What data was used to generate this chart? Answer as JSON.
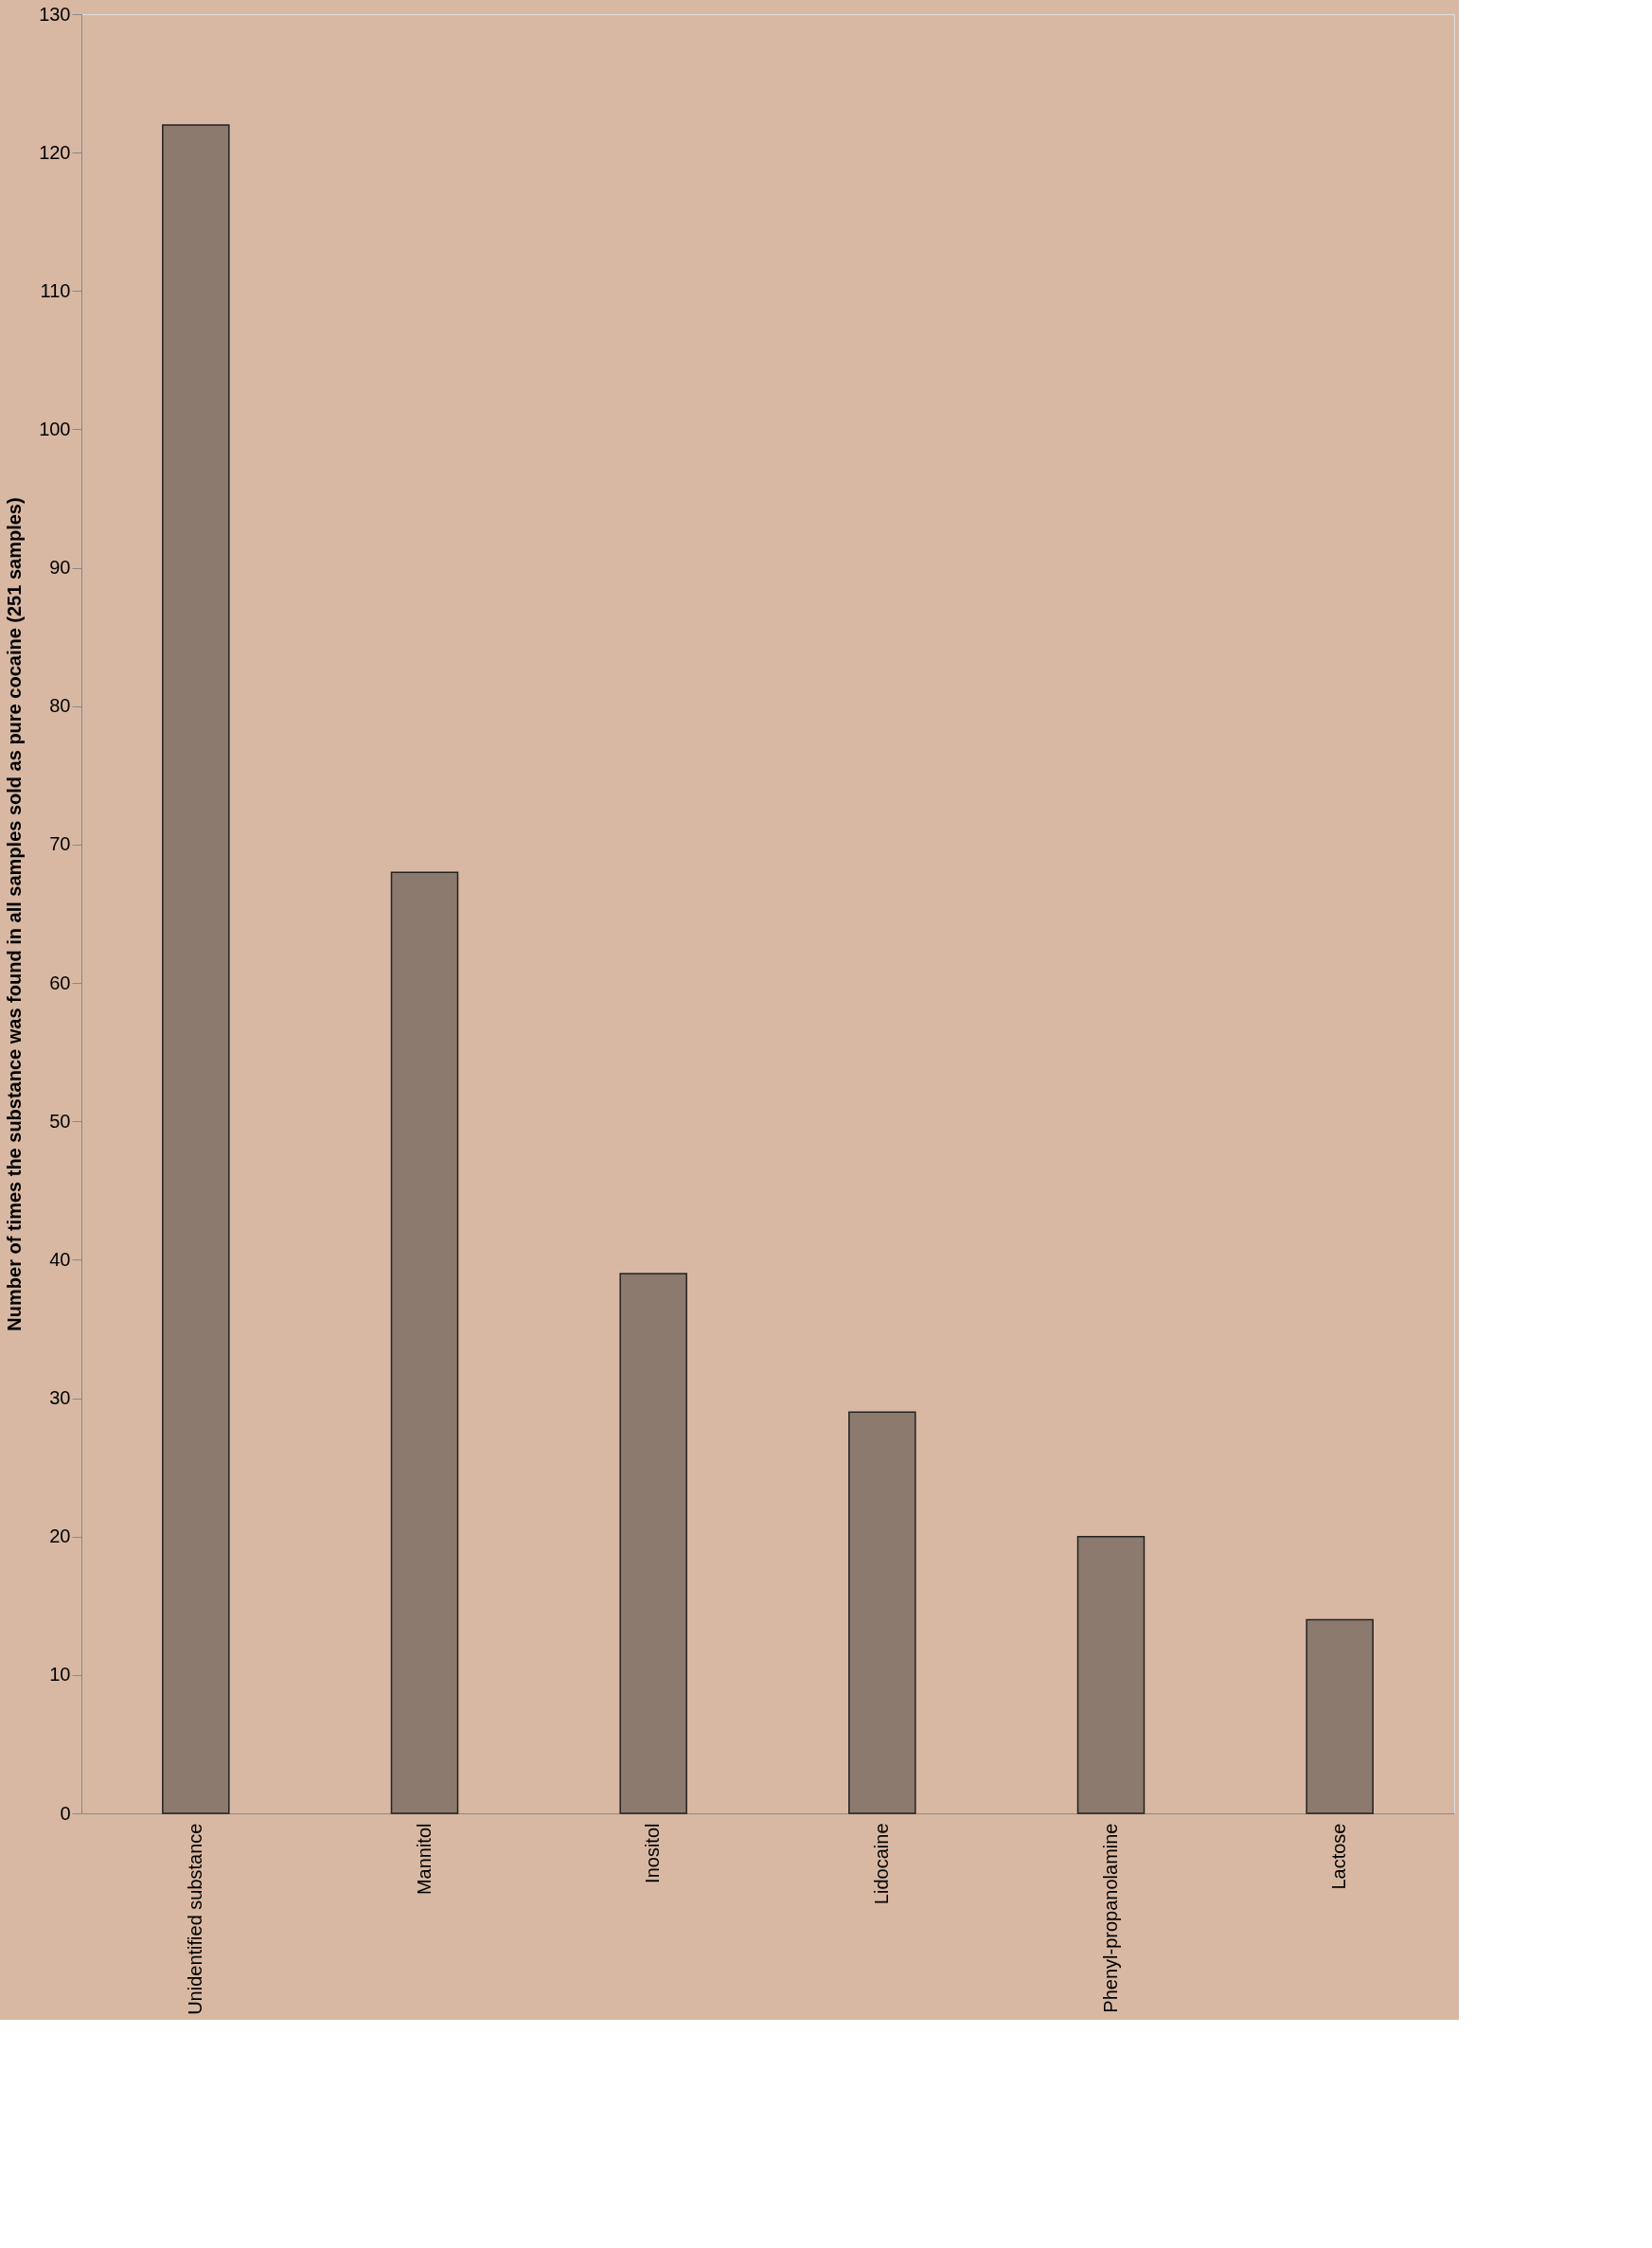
{
  "chart_data": {
    "type": "bar",
    "ylabel": "Number of times the substance was found in all samples sold as pure cocaine (251 samples)",
    "categories": [
      "Unidentified substance",
      "Mannitol",
      "Inositol",
      "Lidocaine",
      "Phenyl-propanolamine",
      "Lactose"
    ],
    "values": [
      122,
      68,
      39,
      29,
      20,
      14
    ],
    "color": "#8c7a6e",
    "ylim": [
      0,
      130
    ],
    "yticks": [
      0,
      10,
      20,
      30,
      40,
      50,
      60,
      70,
      80,
      90,
      100,
      110,
      120,
      130
    ],
    "grid": false
  }
}
